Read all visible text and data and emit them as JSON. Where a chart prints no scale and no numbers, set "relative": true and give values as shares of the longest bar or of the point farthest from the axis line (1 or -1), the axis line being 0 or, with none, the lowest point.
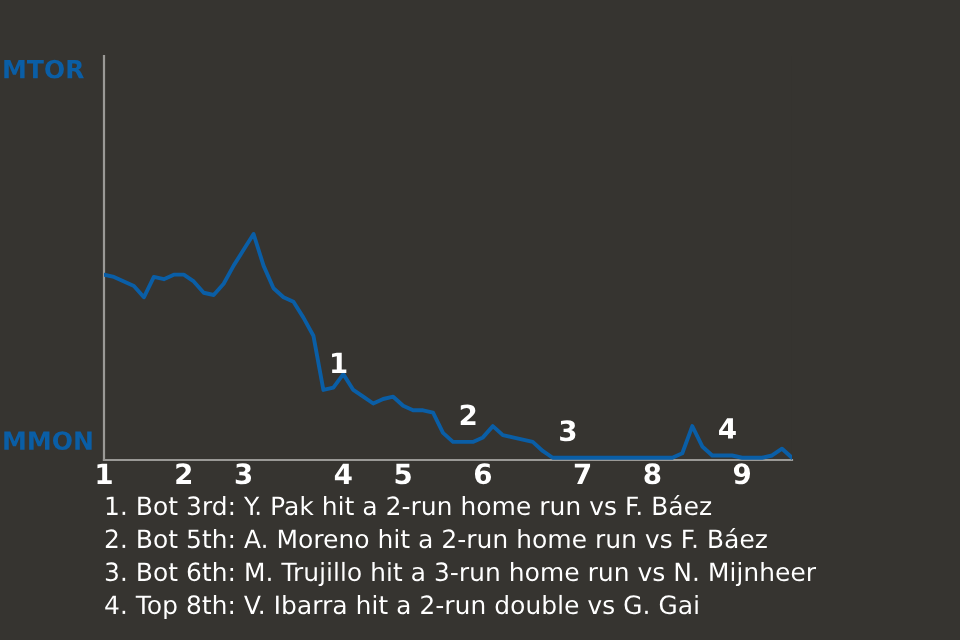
{
  "chart_data": {
    "type": "line",
    "relative": true,
    "legend": false,
    "categories": [
      "1",
      null,
      null,
      null,
      null,
      null,
      null,
      null,
      "2",
      null,
      null,
      null,
      null,
      null,
      "3",
      null,
      null,
      null,
      null,
      null,
      null,
      null,
      null,
      null,
      "4",
      null,
      null,
      null,
      null,
      null,
      "5",
      null,
      null,
      null,
      null,
      null,
      null,
      null,
      "6",
      null,
      null,
      null,
      null,
      null,
      null,
      null,
      null,
      null,
      "7",
      null,
      null,
      null,
      null,
      null,
      null,
      "8",
      null,
      null,
      null,
      null,
      null,
      null,
      null,
      null,
      "9",
      null,
      null,
      null,
      null,
      null
    ],
    "series": [
      {
        "color": "#0a5ea6",
        "values": [
          0.82,
          0.81,
          0.79,
          0.77,
          0.72,
          0.81,
          0.8,
          0.82,
          0.82,
          0.79,
          0.74,
          0.73,
          0.78,
          0.86,
          0.93,
          1,
          0.86,
          0.76,
          0.72,
          0.7,
          0.63,
          0.55,
          0.31,
          0.32,
          0.38,
          0.31,
          0.28,
          0.25,
          0.27,
          0.28,
          0.24,
          0.22,
          0.22,
          0.21,
          0.12,
          0.08,
          0.08,
          0.08,
          0.1,
          0.15,
          0.11,
          0.1,
          0.09,
          0.08,
          0.04,
          0.01,
          0.01,
          0.01,
          0.01,
          0.01,
          0.01,
          0.01,
          0.01,
          0.01,
          0.01,
          0.01,
          0.01,
          0.01,
          0.03,
          0.15,
          0.06,
          0.02,
          0.02,
          0.02,
          0.01,
          0.01,
          0.01,
          0.02,
          0.05,
          0.01
        ]
      }
    ],
    "annotations": [
      "MTOR",
      "MMON",
      {
        "text": "1",
        "y": 0.31
      },
      {
        "text": "2",
        "y": 0.08
      },
      {
        "text": "3",
        "y": 0.01
      },
      {
        "text": "4",
        "y": 0.02
      },
      "1. Bot 3rd: Y. Pak hit a 2-run home run vs F. Báez",
      "2. Bot 5th: A. Moreno hit a 2-run home run vs F. Báez",
      "3. Bot 6th: M. Trujillo hit a 3-run home run vs N. Mijnheer",
      "4. Top 8th: V. Ibarra hit a 2-run double vs G. Gai"
    ]
  }
}
